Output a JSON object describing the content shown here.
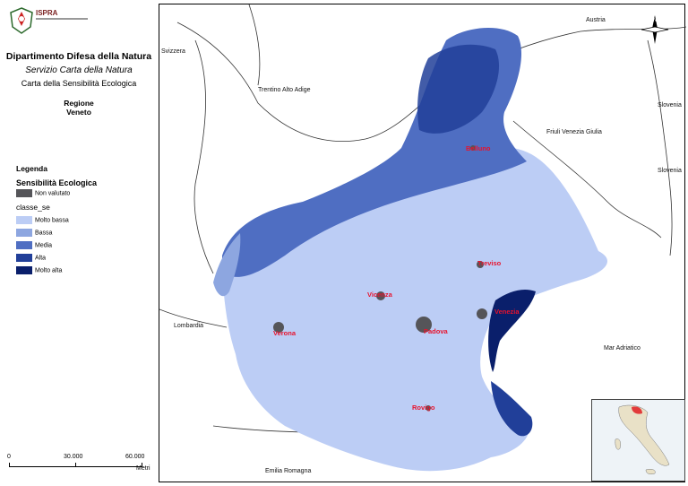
{
  "header": {
    "logo_text": "ISPRA",
    "department": "Dipartimento Difesa della Natura",
    "service": "Servizio Carta della Natura",
    "map_title": "Carta della Sensibilità Ecologica",
    "region_label": "Regione",
    "region_name": "Veneto"
  },
  "legend": {
    "title": "Legenda",
    "subtitle": "Sensibilità Ecologica",
    "field": "classe_se",
    "items": [
      {
        "label": "Non valutato",
        "color": "#555559"
      },
      {
        "label": "Molto bassa",
        "color": "#bccdf5"
      },
      {
        "label": "Bassa",
        "color": "#8da6e0"
      },
      {
        "label": "Media",
        "color": "#4f6ec2"
      },
      {
        "label": "Alta",
        "color": "#213f99"
      },
      {
        "label": "Molto alta",
        "color": "#0a1f6b"
      }
    ]
  },
  "scale_bar": {
    "labels": [
      "0",
      "30.000",
      "60.000"
    ],
    "unit": "Metri"
  },
  "map": {
    "region_labels": [
      "Austria",
      "Svizzera",
      "Trentino Alto Adige",
      "Friuli Venezia Giulia",
      "Slovenia",
      "Slovenia",
      "Lombardia",
      "Mar Adriatico",
      "Emilia Romagna"
    ],
    "city_labels": [
      "Belluno",
      "Treviso",
      "Vicenza",
      "Venezia",
      "Verona",
      "Padova",
      "Rovigo"
    ],
    "north_arrow": "N"
  }
}
